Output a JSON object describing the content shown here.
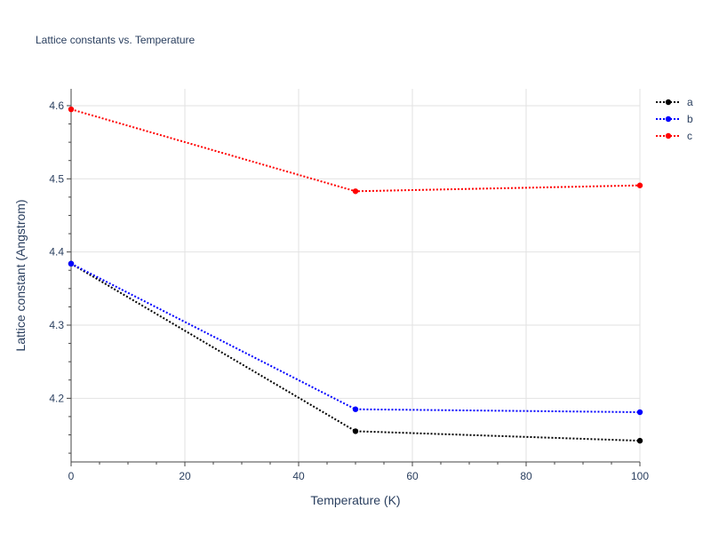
{
  "chart_data": {
    "type": "line",
    "title": "Lattice constants vs. Temperature",
    "xlabel": "Temperature (K)",
    "ylabel": "Lattice constant (Angstrom)",
    "x": [
      0,
      50,
      100
    ],
    "xlim": [
      0,
      100
    ],
    "ylim": [
      4.113,
      4.623
    ],
    "xticks": [
      0,
      20,
      40,
      60,
      80,
      100
    ],
    "yticks": [
      4.2,
      4.3,
      4.4,
      4.5,
      4.6
    ],
    "xtick_labels": [
      "0",
      "20",
      "40",
      "60",
      "80",
      "100"
    ],
    "ytick_labels": [
      "4.2",
      "4.3",
      "4.4",
      "4.5",
      "4.6"
    ],
    "grid": true,
    "legend_position": "top-right",
    "series": [
      {
        "name": "a",
        "color": "#000000",
        "values": [
          4.384,
          4.155,
          4.142
        ]
      },
      {
        "name": "b",
        "color": "#0000ff",
        "values": [
          4.384,
          4.185,
          4.181
        ]
      },
      {
        "name": "c",
        "color": "#ff0000",
        "values": [
          4.595,
          4.483,
          4.491
        ]
      }
    ]
  }
}
